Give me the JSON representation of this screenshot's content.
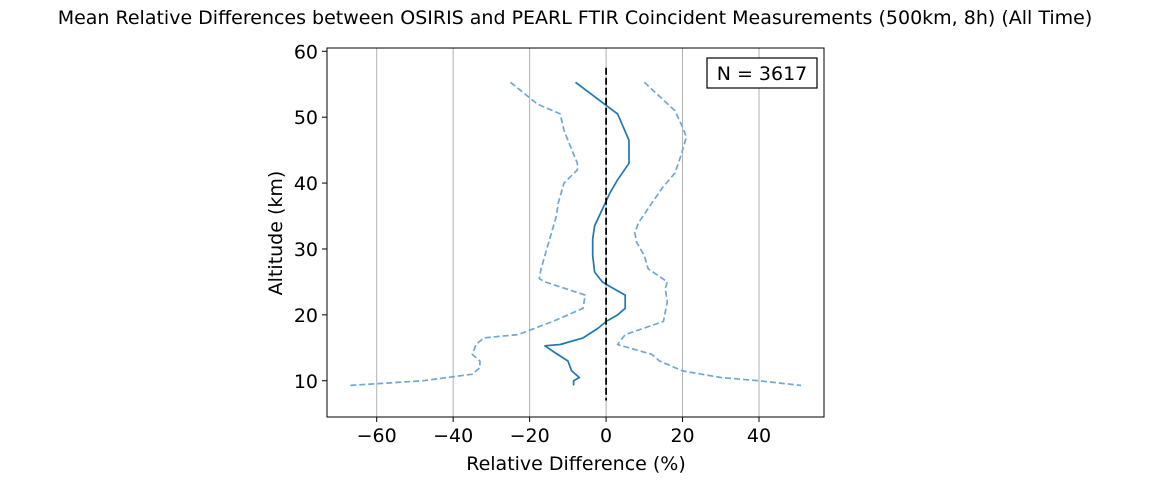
{
  "chart_data": {
    "type": "line",
    "title": "Mean Relative Differences between OSIRIS and PEARL FTIR Coincident Measurements (500km, 8h) (All Time)",
    "xlabel": "Relative Difference (%)",
    "ylabel": "Altitude (km)",
    "xlim": [
      -73,
      57
    ],
    "ylim": [
      4.5,
      60.5
    ],
    "xticks": [
      -60,
      -40,
      -20,
      0,
      20,
      40
    ],
    "xtick_labels": [
      "−60",
      "−40",
      "−20",
      "0",
      "20",
      "40"
    ],
    "yticks": [
      10,
      20,
      30,
      40,
      50,
      60
    ],
    "ytick_labels": [
      "10",
      "20",
      "30",
      "40",
      "50",
      "60"
    ],
    "grid": "x",
    "annotation": "N = 3617",
    "annotation_position": "top-right",
    "colors": {
      "mean": "#1f77b4",
      "bounds": "#6fa8d4",
      "zero_line": "#000000",
      "grid": "#b0b0b0"
    },
    "series": [
      {
        "style": "solid",
        "x": [
          -8,
          3,
          6,
          6,
          3,
          1,
          -1,
          -3,
          -3.5,
          -3.5,
          -3,
          -1,
          1,
          5,
          5,
          3,
          0,
          -2,
          -6,
          -12,
          -16,
          -14,
          -10,
          -9,
          -7,
          -8.5,
          -8.5
        ],
        "y": [
          55.3,
          50.5,
          46.5,
          43,
          40.5,
          38.5,
          36,
          33.5,
          31.5,
          29,
          26.5,
          25,
          24.3,
          23,
          21,
          20,
          19,
          18,
          16.5,
          15.5,
          15.3,
          14.5,
          13,
          11.5,
          10.5,
          10,
          9.3
        ]
      },
      {
        "style": "dashed",
        "x": [
          -25,
          -18,
          -12,
          -11,
          -10,
          -7.5,
          -7.5,
          -11,
          -12.5,
          -13,
          -15,
          -16,
          -17,
          -17.5,
          -16,
          -5.5,
          -6,
          -14,
          -23,
          -32,
          -34,
          -35,
          -33,
          -33,
          -35,
          -48,
          -67
        ],
        "y": [
          55.3,
          52,
          50.5,
          48,
          46.5,
          43,
          42,
          40,
          37,
          35,
          31,
          29,
          27,
          25.5,
          25,
          23,
          21,
          19,
          17,
          16.5,
          15.5,
          14,
          13,
          12,
          11,
          10,
          9.3
        ]
      },
      {
        "style": "dashed",
        "x": [
          10,
          18,
          20,
          21,
          19.5,
          18,
          15,
          12,
          8.5,
          7.5,
          8,
          10,
          11,
          16,
          15.5,
          16,
          15,
          10,
          5,
          3,
          6,
          12,
          14,
          20,
          30,
          40,
          51
        ],
        "y": [
          55.3,
          51,
          48.5,
          47,
          44,
          41.5,
          39.5,
          37,
          34,
          32.5,
          31,
          29,
          27,
          25,
          24,
          22,
          19,
          18,
          17,
          15.5,
          15,
          14,
          13,
          11.5,
          10.5,
          10,
          9.3
        ]
      },
      {
        "style": "dashed_black",
        "x": [
          0,
          0
        ],
        "y": [
          57.5,
          7
        ]
      }
    ]
  }
}
